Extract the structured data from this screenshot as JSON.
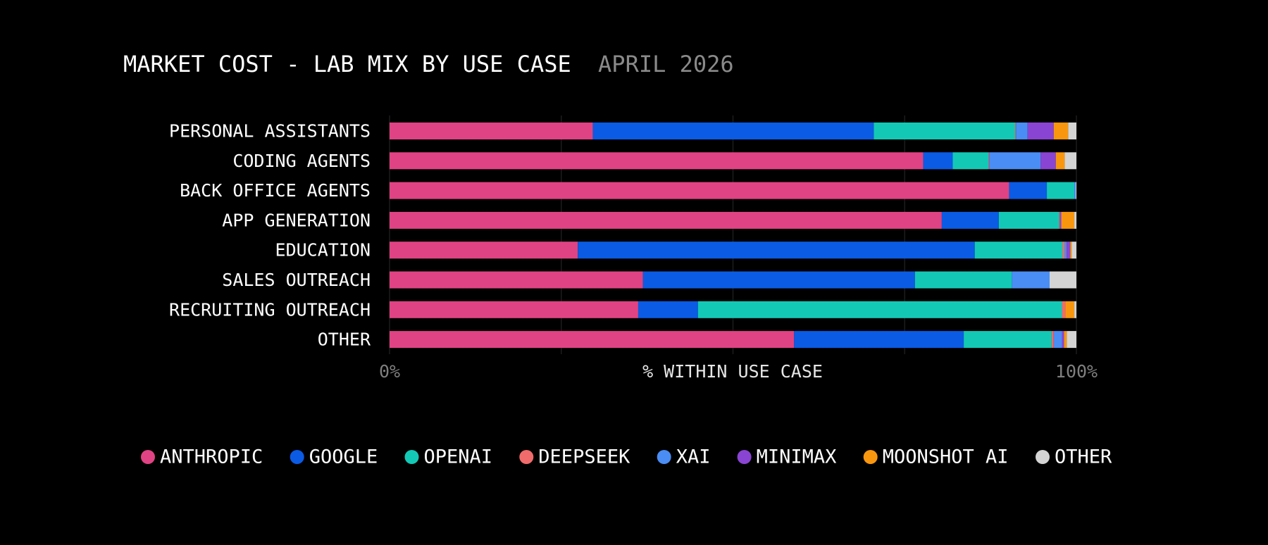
{
  "chart_data": {
    "type": "bar",
    "orientation": "horizontal",
    "stacked": true,
    "title": "MARKET COST - LAB MIX BY USE CASE",
    "subtitle": "APRIL 2026",
    "xlabel": "% WITHIN USE CASE",
    "ylabel": "",
    "xlim": [
      0,
      100
    ],
    "x_ticks": [
      "0%",
      "100%"
    ],
    "grid": true,
    "legend_position": "bottom",
    "categories": [
      "PERSONAL ASSISTANTS",
      "CODING AGENTS",
      "BACK OFFICE AGENTS",
      "APP GENERATION",
      "EDUCATION",
      "SALES OUTREACH",
      "RECRUITING OUTREACH",
      "OTHER"
    ],
    "series": [
      {
        "name": "ANTHROPIC",
        "color": "#e04383",
        "values": [
          29.6,
          77.7,
          90.2,
          80.4,
          27.4,
          36.9,
          36.2,
          58.9
        ]
      },
      {
        "name": "GOOGLE",
        "color": "#0b5be4",
        "values": [
          40.9,
          4.3,
          5.5,
          8.3,
          57.8,
          39.6,
          8.7,
          24.7
        ]
      },
      {
        "name": "OPENAI",
        "color": "#13c9b6",
        "values": [
          20.6,
          5.2,
          4.0,
          8.8,
          12.8,
          14.1,
          53.0,
          12.8
        ]
      },
      {
        "name": "DEEPSEEK",
        "color": "#f06b6b",
        "values": [
          0.1,
          0.1,
          0.0,
          0.1,
          0.3,
          0.0,
          0.5,
          0.3
        ]
      },
      {
        "name": "XAI",
        "color": "#4a8df4",
        "values": [
          1.7,
          7.5,
          0.2,
          0.0,
          0.3,
          5.5,
          0.0,
          1.2
        ]
      },
      {
        "name": "MINIMAX",
        "color": "#8a44d3",
        "values": [
          3.8,
          2.2,
          0.0,
          0.2,
          0.5,
          0.0,
          0.0,
          0.3
        ]
      },
      {
        "name": "MOONSHOT AI",
        "color": "#f8970f",
        "values": [
          2.1,
          1.3,
          0.0,
          1.9,
          0.2,
          0.0,
          1.3,
          0.4
        ]
      },
      {
        "name": "OTHER",
        "color": "#d4d4d4",
        "values": [
          1.2,
          1.7,
          0.1,
          0.3,
          0.7,
          3.9,
          0.3,
          1.4
        ]
      }
    ]
  }
}
